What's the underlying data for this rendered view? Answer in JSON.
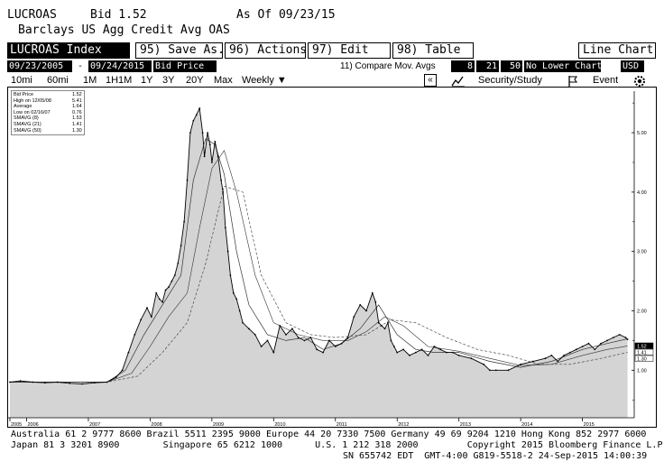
{
  "header": {
    "ticker": "LUCROAS",
    "bid_label": "Bid 1.52",
    "asof_label": "As Of 09/23/15",
    "description": "Barclays US Agg Credit Avg OAS"
  },
  "menu": {
    "security": "LUCROAS Index",
    "save": "95) Save As...",
    "actions": "96) Actions",
    "edit": "97) Edit",
    "table": "98) Table",
    "line_chart": "Line Chart"
  },
  "params": {
    "start_date": "09/23/2005",
    "dash": "-",
    "end_date": "09/24/2015",
    "field": "Bid Price",
    "compare": "11) Compare Mov. Avgs",
    "ma1": "8",
    "ma2": "21",
    "ma3": "50",
    "lower_chart": "No Lower Chart",
    "currency": "USD"
  },
  "toolbar": {
    "periods": [
      "10mi",
      "60mi",
      "1M",
      "1H1M",
      "1Y",
      "3Y",
      "20Y",
      "Max"
    ],
    "frequency": "Weekly ▼",
    "collapse": "«",
    "security_study": "Security/Study",
    "event": "Event"
  },
  "legend": [
    {
      "label": "Bid Price",
      "value": "1.52"
    },
    {
      "label": "High on 12/05/08",
      "value": "5.41"
    },
    {
      "label": "Average",
      "value": "1.64"
    },
    {
      "label": "Low on 02/16/07",
      "value": "0.76"
    },
    {
      "label": "SMAVG (8)",
      "value": "1.53"
    },
    {
      "label": "SMAVG (21)",
      "value": "1.41"
    },
    {
      "label": "SMAVG (50)",
      "value": "1.30"
    }
  ],
  "chart_data": {
    "type": "area",
    "x_ticks": [
      "2005",
      "2006",
      "2007",
      "2008",
      "2009",
      "2010",
      "2011",
      "2012",
      "2013",
      "2014",
      "2015"
    ],
    "y_ticks": [
      "1.00",
      "2.00",
      "3.00",
      "4.00",
      "5.00"
    ],
    "ylim": [
      0.2,
      5.7
    ],
    "last_labels": [
      "1.52",
      "1.41",
      "1.30"
    ],
    "colors": {
      "area": "#d4d4d4",
      "line": "#000000",
      "frame": "#000000"
    },
    "series": [
      {
        "name": "Bid Price",
        "x": [
          2005.73,
          2005.9,
          2006.1,
          2006.3,
          2006.5,
          2006.7,
          2006.9,
          2007.1,
          2007.3,
          2007.45,
          2007.55,
          2007.65,
          2007.75,
          2007.85,
          2007.95,
          2008.02,
          2008.1,
          2008.15,
          2008.2,
          2008.25,
          2008.3,
          2008.35,
          2008.4,
          2008.45,
          2008.5,
          2008.55,
          2008.6,
          2008.65,
          2008.7,
          2008.75,
          2008.8,
          2008.85,
          2008.88,
          2008.93,
          2008.97,
          2009.0,
          2009.05,
          2009.1,
          2009.15,
          2009.18,
          2009.22,
          2009.26,
          2009.3,
          2009.35,
          2009.4,
          2009.45,
          2009.5,
          2009.6,
          2009.7,
          2009.8,
          2009.9,
          2010.0,
          2010.1,
          2010.2,
          2010.3,
          2010.4,
          2010.5,
          2010.6,
          2010.7,
          2010.8,
          2010.9,
          2011.0,
          2011.1,
          2011.2,
          2011.3,
          2011.4,
          2011.5,
          2011.6,
          2011.65,
          2011.7,
          2011.75,
          2011.8,
          2011.85,
          2011.9,
          2011.95,
          2012.0,
          2012.1,
          2012.2,
          2012.3,
          2012.4,
          2012.5,
          2012.6,
          2012.7,
          2012.8,
          2012.9,
          2013.0,
          2013.2,
          2013.4,
          2013.5,
          2013.6,
          2013.8,
          2014.0,
          2014.2,
          2014.4,
          2014.5,
          2014.6,
          2014.7,
          2014.8,
          2014.9,
          2015.0,
          2015.1,
          2015.2,
          2015.3,
          2015.4,
          2015.5,
          2015.6,
          2015.7,
          2015.73
        ],
        "values": [
          0.8,
          0.82,
          0.8,
          0.79,
          0.8,
          0.78,
          0.77,
          0.79,
          0.8,
          0.88,
          1.0,
          1.3,
          1.6,
          1.85,
          2.05,
          1.9,
          2.3,
          2.2,
          2.15,
          2.35,
          2.4,
          2.5,
          2.6,
          2.8,
          3.1,
          3.5,
          4.2,
          5.0,
          5.2,
          5.3,
          5.41,
          5.0,
          4.6,
          5.0,
          4.8,
          4.5,
          4.85,
          4.6,
          4.2,
          4.0,
          3.4,
          3.0,
          2.6,
          2.3,
          2.2,
          2.0,
          1.8,
          1.7,
          1.6,
          1.4,
          1.5,
          1.3,
          1.75,
          1.6,
          1.7,
          1.55,
          1.5,
          1.55,
          1.35,
          1.3,
          1.5,
          1.4,
          1.45,
          1.55,
          1.9,
          2.1,
          2.0,
          2.3,
          2.15,
          1.8,
          1.75,
          1.7,
          1.8,
          1.5,
          1.4,
          1.3,
          1.35,
          1.25,
          1.3,
          1.35,
          1.25,
          1.4,
          1.35,
          1.3,
          1.3,
          1.25,
          1.2,
          1.1,
          1.0,
          1.0,
          1.0,
          1.1,
          1.15,
          1.2,
          1.25,
          1.15,
          1.25,
          1.3,
          1.35,
          1.4,
          1.45,
          1.35,
          1.45,
          1.5,
          1.55,
          1.6,
          1.55,
          1.52
        ]
      },
      {
        "name": "SMAVG (8)",
        "x": [
          2005.73,
          2006.5,
          2007.3,
          2007.6,
          2007.9,
          2008.2,
          2008.5,
          2008.7,
          2008.9,
          2009.05,
          2009.2,
          2009.4,
          2009.6,
          2009.9,
          2010.2,
          2010.5,
          2010.8,
          2011.1,
          2011.4,
          2011.7,
          2012.0,
          2012.3,
          2012.6,
          2013.0,
          2013.5,
          2014.0,
          2014.5,
          2015.0,
          2015.4,
          2015.73
        ],
        "values": [
          0.8,
          0.8,
          0.8,
          1.0,
          1.6,
          2.1,
          2.6,
          4.2,
          4.9,
          4.8,
          4.3,
          3.0,
          2.1,
          1.6,
          1.5,
          1.55,
          1.35,
          1.45,
          1.7,
          2.1,
          1.6,
          1.35,
          1.3,
          1.3,
          1.15,
          1.05,
          1.15,
          1.35,
          1.45,
          1.53
        ]
      },
      {
        "name": "SMAVG (21)",
        "x": [
          2005.73,
          2006.5,
          2007.3,
          2007.7,
          2008.0,
          2008.3,
          2008.6,
          2008.8,
          2009.0,
          2009.2,
          2009.4,
          2009.7,
          2010.0,
          2010.4,
          2010.8,
          2011.2,
          2011.5,
          2011.8,
          2012.1,
          2012.5,
          2013.0,
          2013.5,
          2014.0,
          2014.5,
          2015.0,
          2015.4,
          2015.73
        ],
        "values": [
          0.8,
          0.8,
          0.8,
          0.95,
          1.4,
          1.9,
          2.3,
          3.4,
          4.4,
          4.7,
          4.0,
          2.6,
          1.8,
          1.6,
          1.5,
          1.5,
          1.65,
          1.9,
          1.75,
          1.4,
          1.32,
          1.2,
          1.08,
          1.1,
          1.25,
          1.35,
          1.41
        ]
      },
      {
        "name": "SMAVG (50)",
        "x": [
          2005.73,
          2006.5,
          2007.3,
          2007.8,
          2008.2,
          2008.6,
          2008.9,
          2009.2,
          2009.5,
          2009.8,
          2010.2,
          2010.6,
          2011.0,
          2011.5,
          2011.9,
          2012.3,
          2012.8,
          2013.3,
          2013.8,
          2014.3,
          2014.8,
          2015.3,
          2015.73
        ],
        "values": [
          0.8,
          0.8,
          0.8,
          0.9,
          1.3,
          1.8,
          2.8,
          4.1,
          4.0,
          2.6,
          1.8,
          1.6,
          1.55,
          1.6,
          1.85,
          1.8,
          1.55,
          1.35,
          1.25,
          1.1,
          1.1,
          1.2,
          1.3
        ]
      }
    ]
  },
  "footer": {
    "line1": "Australia 61 2 9777 8600 Brazil 5511 2395 9000 Europe 44 20 7330 7500 Germany 49 69 9204 1210 Hong Kong 852 2977 6000",
    "line2": "Japan 81 3 3201 8900        Singapore 65 6212 1000      U.S. 1 212 318 2000         Copyright 2015 Bloomberg Finance L.P.",
    "line3": "SN 655742 EDT  GMT-4:00 G819-5518-2 24-Sep-2015 14:00:39"
  }
}
